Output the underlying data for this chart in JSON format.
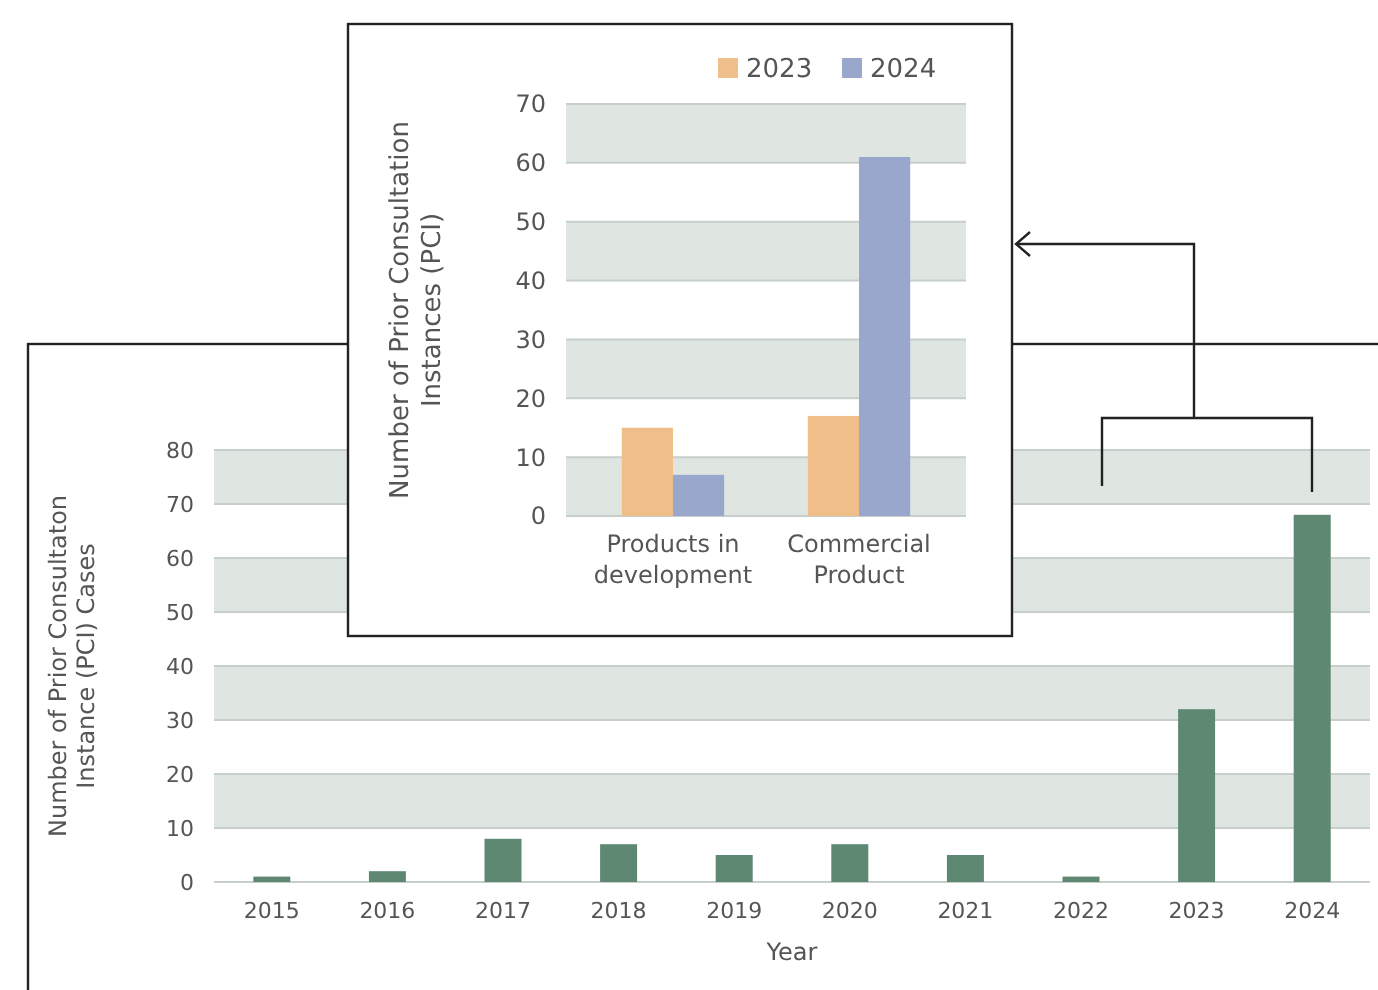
{
  "chart_data": [
    {
      "type": "bar",
      "xlabel": "Year",
      "ylabel": "Number of Prior Consultaton Instance  (PCI) Cases",
      "categories": [
        "2015",
        "2016",
        "2017",
        "2018",
        "2019",
        "2020",
        "2021",
        "2022",
        "2023",
        "2024"
      ],
      "series": [
        {
          "color": "#5e8872",
          "values": [
            1,
            2,
            8,
            7,
            5,
            7,
            5,
            1,
            32,
            68
          ]
        }
      ],
      "ylim": [
        0,
        80
      ],
      "yticks": [
        0,
        10,
        20,
        30,
        40,
        50,
        60,
        70,
        80
      ],
      "grid": "y"
    },
    {
      "type": "bar",
      "ylabel": "Number of Prior Consultation Instances (PCI)",
      "categories": [
        "Products in development",
        "Commercial Product"
      ],
      "series": [
        {
          "name": "2023",
          "color": "#f0be88",
          "values": [
            15,
            17
          ]
        },
        {
          "name": "2024",
          "color": "#9aa7cc",
          "values": [
            7,
            61
          ]
        }
      ],
      "ylim": [
        0,
        70
      ],
      "yticks": [
        0,
        10,
        20,
        30,
        40,
        50,
        60,
        70
      ],
      "grid": "y",
      "legend": "top right"
    }
  ]
}
